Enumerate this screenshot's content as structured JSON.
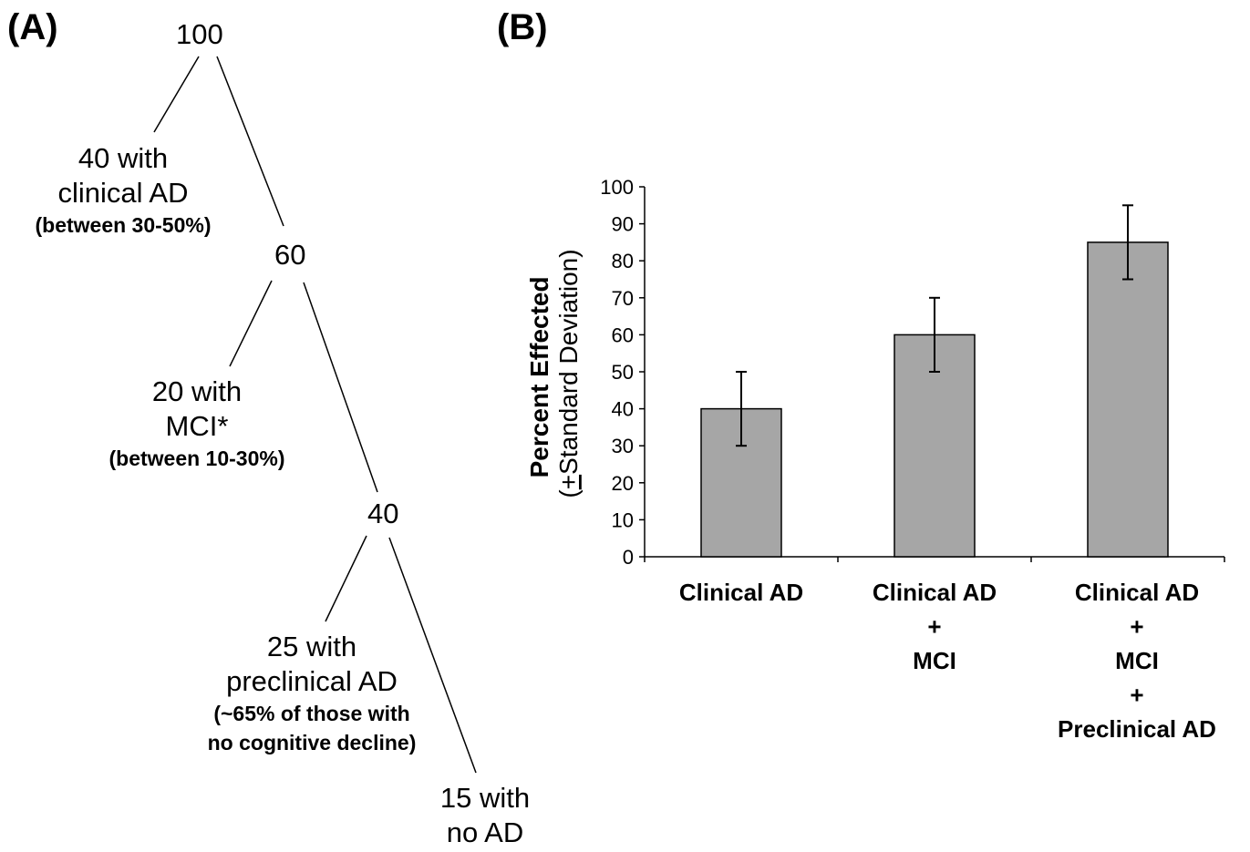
{
  "panels": {
    "a_label": "(A)",
    "b_label": "(B)"
  },
  "tree": {
    "root": "100",
    "node60": "60",
    "node40": "40",
    "clinical_line1": "40 with",
    "clinical_line2": "clinical AD",
    "clinical_note": "(between 30-50%)",
    "mci_line1": "20 with",
    "mci_line2": "MCI*",
    "mci_note": "(between 10-30%)",
    "pre_line1": "25 with",
    "pre_line2": "preclinical AD",
    "pre_note1": "(~65% of those with",
    "pre_note2": "no cognitive decline)",
    "noad_line1": "15 with",
    "noad_line2": "no AD"
  },
  "chart_data": {
    "type": "bar",
    "categories": [
      [
        "Clinical AD"
      ],
      [
        "Clinical AD",
        "+",
        "MCI"
      ],
      [
        "Clinical AD",
        "+",
        "MCI",
        "+",
        "Preclinical AD"
      ]
    ],
    "values": [
      40,
      60,
      85
    ],
    "error": [
      10,
      10,
      10
    ],
    "ylabel_line1": "Percent Effected",
    "ylabel_line2_prefix": "(",
    "ylabel_pm": "+",
    "ylabel_line2_rest": "Standard Deviation)",
    "ylim": [
      0,
      100
    ],
    "yticks": [
      0,
      10,
      20,
      30,
      40,
      50,
      60,
      70,
      80,
      90,
      100
    ],
    "bar_color": "#a6a6a6",
    "grid": false
  }
}
